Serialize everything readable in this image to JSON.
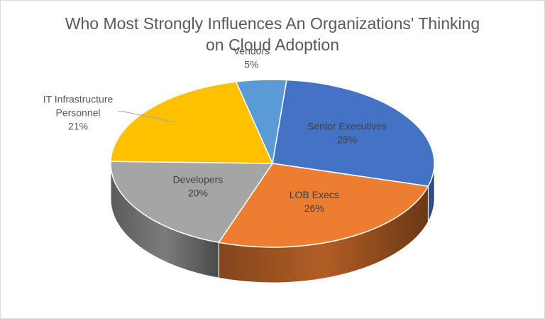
{
  "chart_data": {
    "type": "pie",
    "title_line1": "Who Most Strongly Influences An Organizations' Thinking",
    "title_line2": "on Cloud Adoption",
    "slices": [
      {
        "label": "Senior Executives",
        "value": 28,
        "percent": "28%",
        "color": "#4472c4"
      },
      {
        "label": "LOB Execs",
        "value": 26,
        "percent": "26%",
        "color": "#ed7d31"
      },
      {
        "label": "Developers",
        "value": 20,
        "percent": "20%",
        "color": "#a5a5a5"
      },
      {
        "label": "IT Infrastructure Personnel",
        "label_lines": [
          "IT Infrastructure",
          "Personnel"
        ],
        "value": 21,
        "percent": "21%",
        "color": "#ffc000"
      },
      {
        "label": "Vendors",
        "value": 5,
        "percent": "5%",
        "color": "#5b9bd5"
      }
    ],
    "style": "3d-pie",
    "legend": "none",
    "label_color_inside": "#404040",
    "label_color_outside": "#595959"
  }
}
